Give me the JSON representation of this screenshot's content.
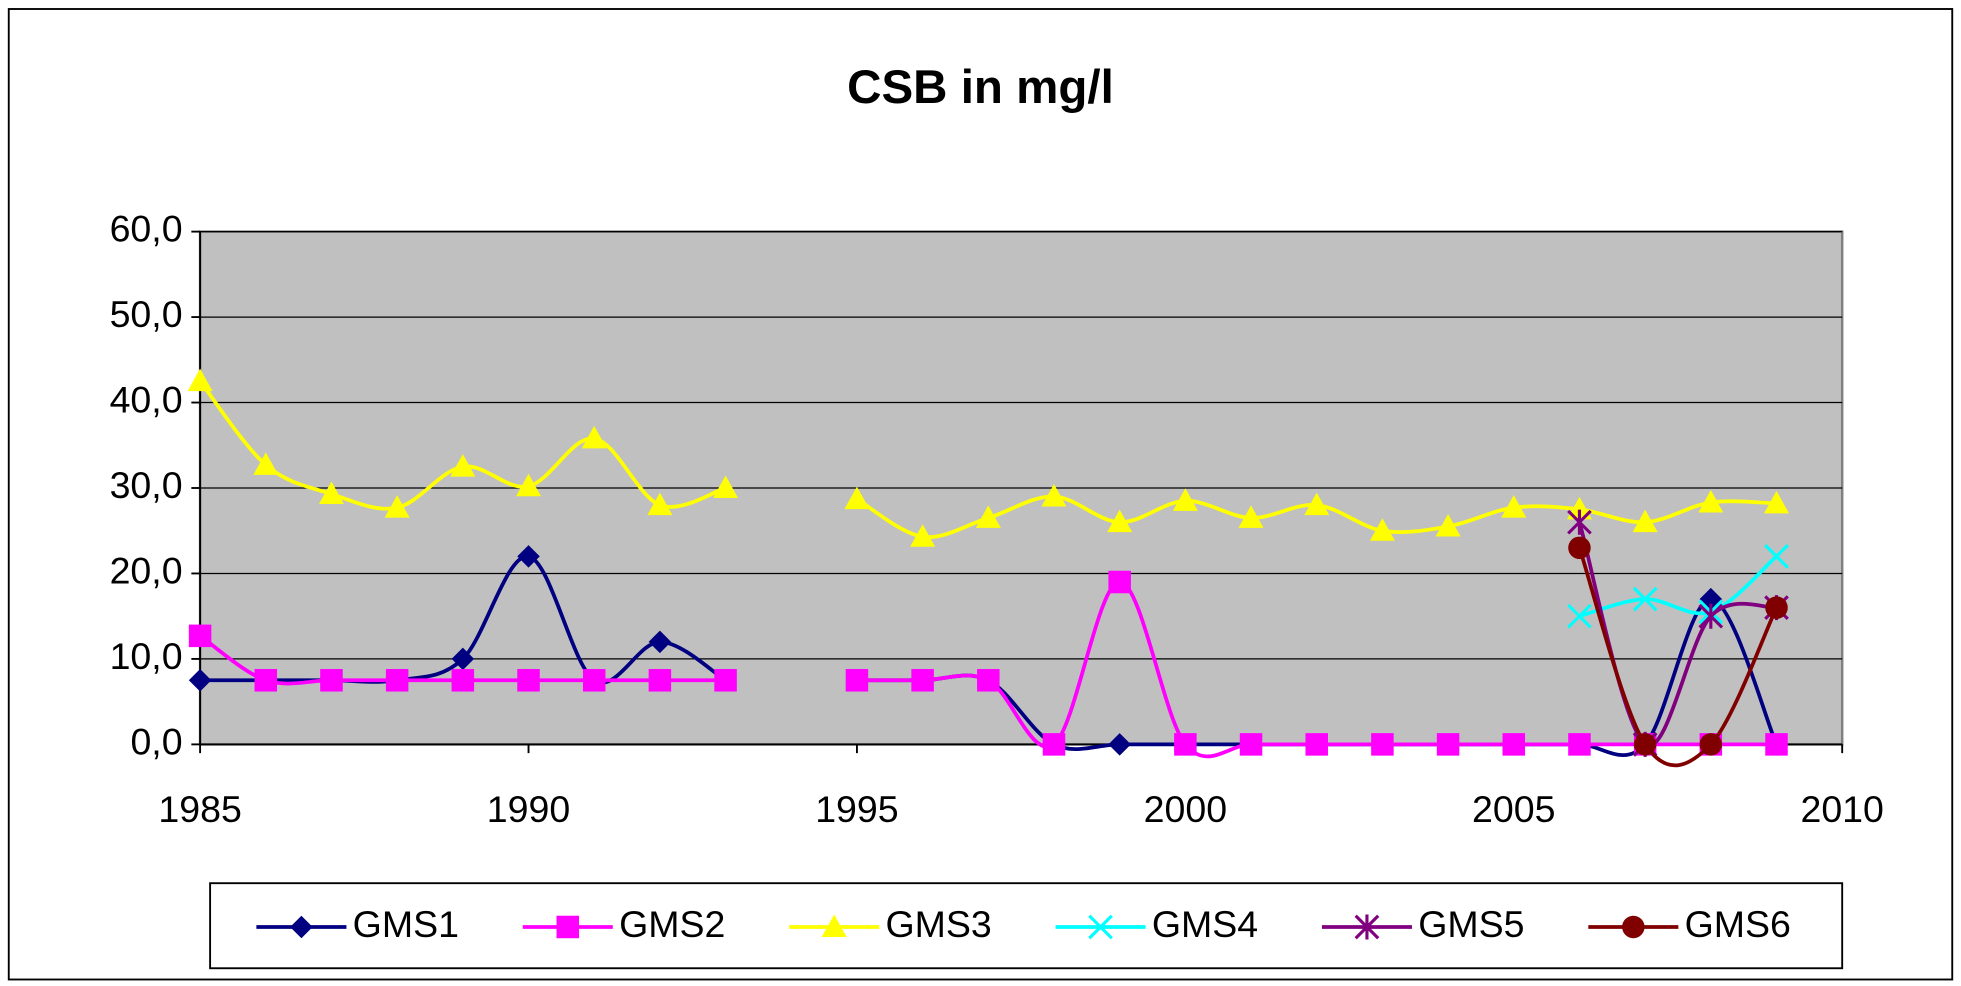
{
  "chart_data": {
    "type": "line",
    "title": "CSB in mg/l",
    "x": [
      1985,
      1986,
      1987,
      1988,
      1989,
      1990,
      1991,
      1992,
      1993,
      1994,
      1995,
      1996,
      1997,
      1998,
      1999,
      2000,
      2001,
      2002,
      2003,
      2004,
      2005,
      2006,
      2007,
      2008,
      2009
    ],
    "xlim": [
      1985,
      2010
    ],
    "xticks": [
      1985,
      1990,
      1995,
      2000,
      2005,
      2010
    ],
    "ylim": [
      0,
      60
    ],
    "yticks": [
      {
        "value": 0,
        "label": "0,0"
      },
      {
        "value": 10,
        "label": "10,0"
      },
      {
        "value": 20,
        "label": "20,0"
      },
      {
        "value": 30,
        "label": "30,0"
      },
      {
        "value": 40,
        "label": "40,0"
      },
      {
        "value": 50,
        "label": "50,0"
      },
      {
        "value": 60,
        "label": "60,0"
      }
    ],
    "grid": true,
    "smooth": true,
    "legend": "bottom",
    "plot_background": "#c0c0c0",
    "series": [
      {
        "name": "GMS1",
        "color": "#000080",
        "marker": "diamond",
        "values": [
          7.5,
          7.5,
          7.5,
          7.5,
          10,
          22,
          7.5,
          12,
          7.5,
          null,
          7.5,
          7.5,
          7.5,
          0,
          0,
          0,
          0,
          0,
          0,
          0,
          0,
          0,
          0,
          17,
          0
        ]
      },
      {
        "name": "GMS2",
        "color": "#ff00ff",
        "marker": "square",
        "values": [
          12.7,
          7.5,
          7.5,
          7.5,
          7.5,
          7.5,
          7.5,
          7.5,
          7.5,
          null,
          7.5,
          7.5,
          7.5,
          0,
          19,
          0,
          0,
          0,
          0,
          0,
          0,
          0,
          0,
          0,
          0
        ]
      },
      {
        "name": "GMS3",
        "color": "#ffff00",
        "marker": "triangle",
        "values": [
          42.5,
          32.7,
          29.3,
          27.7,
          32.5,
          30.2,
          35.8,
          28,
          30,
          null,
          28.7,
          24.3,
          26.5,
          29,
          26,
          28.5,
          26.5,
          28,
          25,
          25.5,
          27.7,
          27.5,
          26,
          28.3,
          28.2
        ]
      },
      {
        "name": "GMS4",
        "color": "#00ffff",
        "marker": "x",
        "values": [
          null,
          null,
          null,
          null,
          null,
          null,
          null,
          null,
          null,
          null,
          null,
          null,
          null,
          null,
          null,
          null,
          null,
          null,
          null,
          null,
          null,
          15,
          17,
          15.5,
          22
        ]
      },
      {
        "name": "GMS5",
        "color": "#800080",
        "marker": "star",
        "values": [
          null,
          null,
          null,
          null,
          null,
          null,
          null,
          null,
          null,
          null,
          null,
          null,
          null,
          null,
          null,
          null,
          null,
          null,
          null,
          null,
          null,
          26,
          0,
          15,
          16
        ]
      },
      {
        "name": "GMS6",
        "color": "#800000",
        "marker": "circle",
        "values": [
          null,
          null,
          null,
          null,
          null,
          null,
          null,
          null,
          null,
          null,
          null,
          null,
          null,
          null,
          null,
          null,
          null,
          null,
          null,
          null,
          null,
          23,
          0,
          0,
          16
        ]
      }
    ]
  }
}
